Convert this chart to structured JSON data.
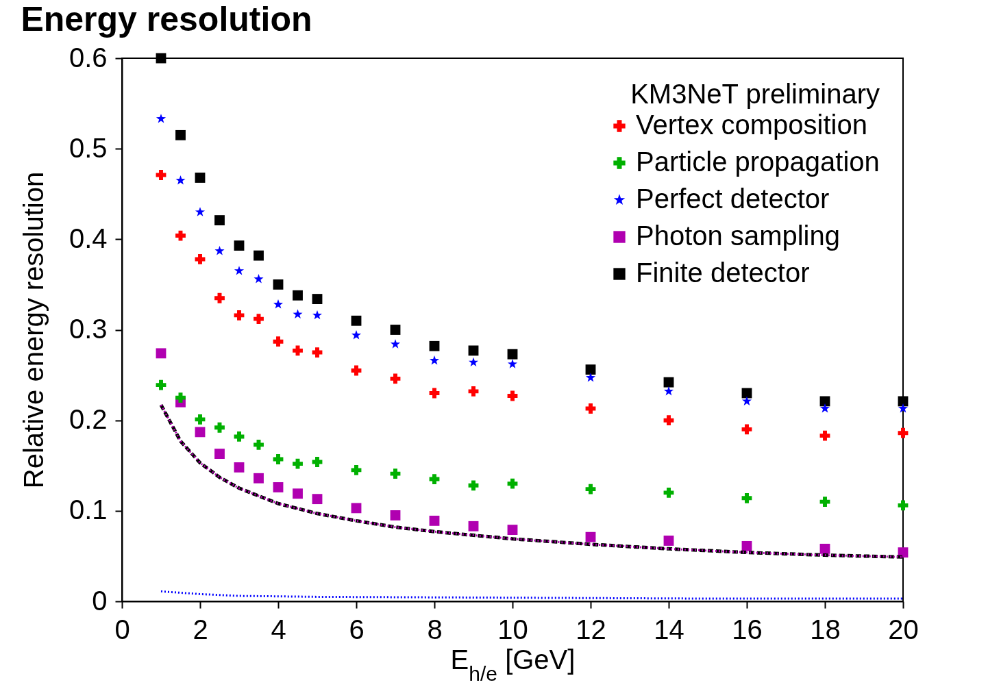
{
  "chart_data": {
    "type": "scatter",
    "title": "Energy resolution",
    "xlabel": "E$_{h/e}$ [GeV]",
    "ylabel": "Relative energy resolution",
    "legend_title": "KM3NeT preliminary",
    "legend": "top right",
    "grid": false,
    "xlim": [
      0,
      20
    ],
    "xticks": [
      0,
      2,
      4,
      6,
      8,
      10,
      12,
      14,
      16,
      18,
      20
    ],
    "ylim": [
      0,
      0.6
    ],
    "yticks": [
      0,
      0.1,
      0.2,
      0.3,
      0.4,
      0.5,
      0.6
    ],
    "x": [
      1,
      1.5,
      2,
      2.5,
      3,
      3.5,
      4,
      4.5,
      5,
      6,
      7,
      8,
      9,
      10,
      12,
      14,
      16,
      18,
      20
    ],
    "series": [
      {
        "name": "Vertex composition",
        "color": "#ff0000",
        "marker": "cross",
        "values": [
          0.471,
          0.404,
          0.378,
          0.335,
          0.316,
          0.312,
          0.287,
          0.277,
          0.275,
          0.255,
          0.246,
          0.23,
          0.232,
          0.227,
          0.213,
          0.2,
          0.19,
          0.183,
          0.186
        ]
      },
      {
        "name": "Particle propagation",
        "color": "#00b000",
        "marker": "cross",
        "values": [
          0.239,
          0.225,
          0.201,
          0.192,
          0.182,
          0.173,
          0.157,
          0.152,
          0.154,
          0.145,
          0.141,
          0.135,
          0.128,
          0.13,
          0.124,
          0.12,
          0.114,
          0.11,
          0.106
        ]
      },
      {
        "name": "Perfect detector",
        "color": "#0000ff",
        "marker": "star",
        "values": [
          0.533,
          0.465,
          0.43,
          0.387,
          0.365,
          0.356,
          0.328,
          0.317,
          0.316,
          0.294,
          0.284,
          0.266,
          0.264,
          0.262,
          0.247,
          0.232,
          0.221,
          0.213,
          0.213
        ]
      },
      {
        "name": "Photon sampling",
        "color": "#b000b0",
        "marker": "square",
        "values": [
          0.274,
          0.22,
          0.187,
          0.163,
          0.148,
          0.136,
          0.126,
          0.119,
          0.113,
          0.103,
          0.095,
          0.089,
          0.083,
          0.079,
          0.071,
          0.067,
          0.061,
          0.058,
          0.054
        ]
      },
      {
        "name": "Finite detector",
        "color": "#000000",
        "marker": "square",
        "values": [
          0.6,
          0.515,
          0.468,
          0.421,
          0.393,
          0.382,
          0.35,
          0.338,
          0.334,
          0.31,
          0.3,
          0.282,
          0.277,
          0.273,
          0.256,
          0.242,
          0.23,
          0.221,
          0.221
        ]
      },
      {
        "color": "#0000ff",
        "type": "line",
        "line_style": "dotted",
        "x": [
          1,
          2,
          3,
          5,
          10,
          15,
          20
        ],
        "values": [
          0.011,
          0.008,
          0.006,
          0.005,
          0.004,
          0.003,
          0.003
        ]
      },
      {
        "color": "#b000b0",
        "type": "line",
        "line_style": "dotted",
        "x": [
          1,
          1.5,
          2,
          2.5,
          3,
          4,
          5,
          6,
          7,
          8,
          10,
          12,
          14,
          16,
          18,
          20
        ],
        "values": [
          0.217,
          0.177,
          0.153,
          0.137,
          0.125,
          0.108,
          0.097,
          0.089,
          0.082,
          0.077,
          0.069,
          0.063,
          0.058,
          0.054,
          0.051,
          0.049
        ]
      },
      {
        "color": "#000000",
        "type": "line",
        "line_style": "dashed",
        "x": [
          1,
          1.5,
          2,
          2.5,
          3,
          4,
          5,
          6,
          7,
          8,
          10,
          12,
          14,
          16,
          18,
          20
        ],
        "values": [
          0.217,
          0.177,
          0.153,
          0.137,
          0.125,
          0.108,
          0.097,
          0.089,
          0.082,
          0.077,
          0.069,
          0.063,
          0.058,
          0.054,
          0.051,
          0.049
        ]
      }
    ]
  }
}
